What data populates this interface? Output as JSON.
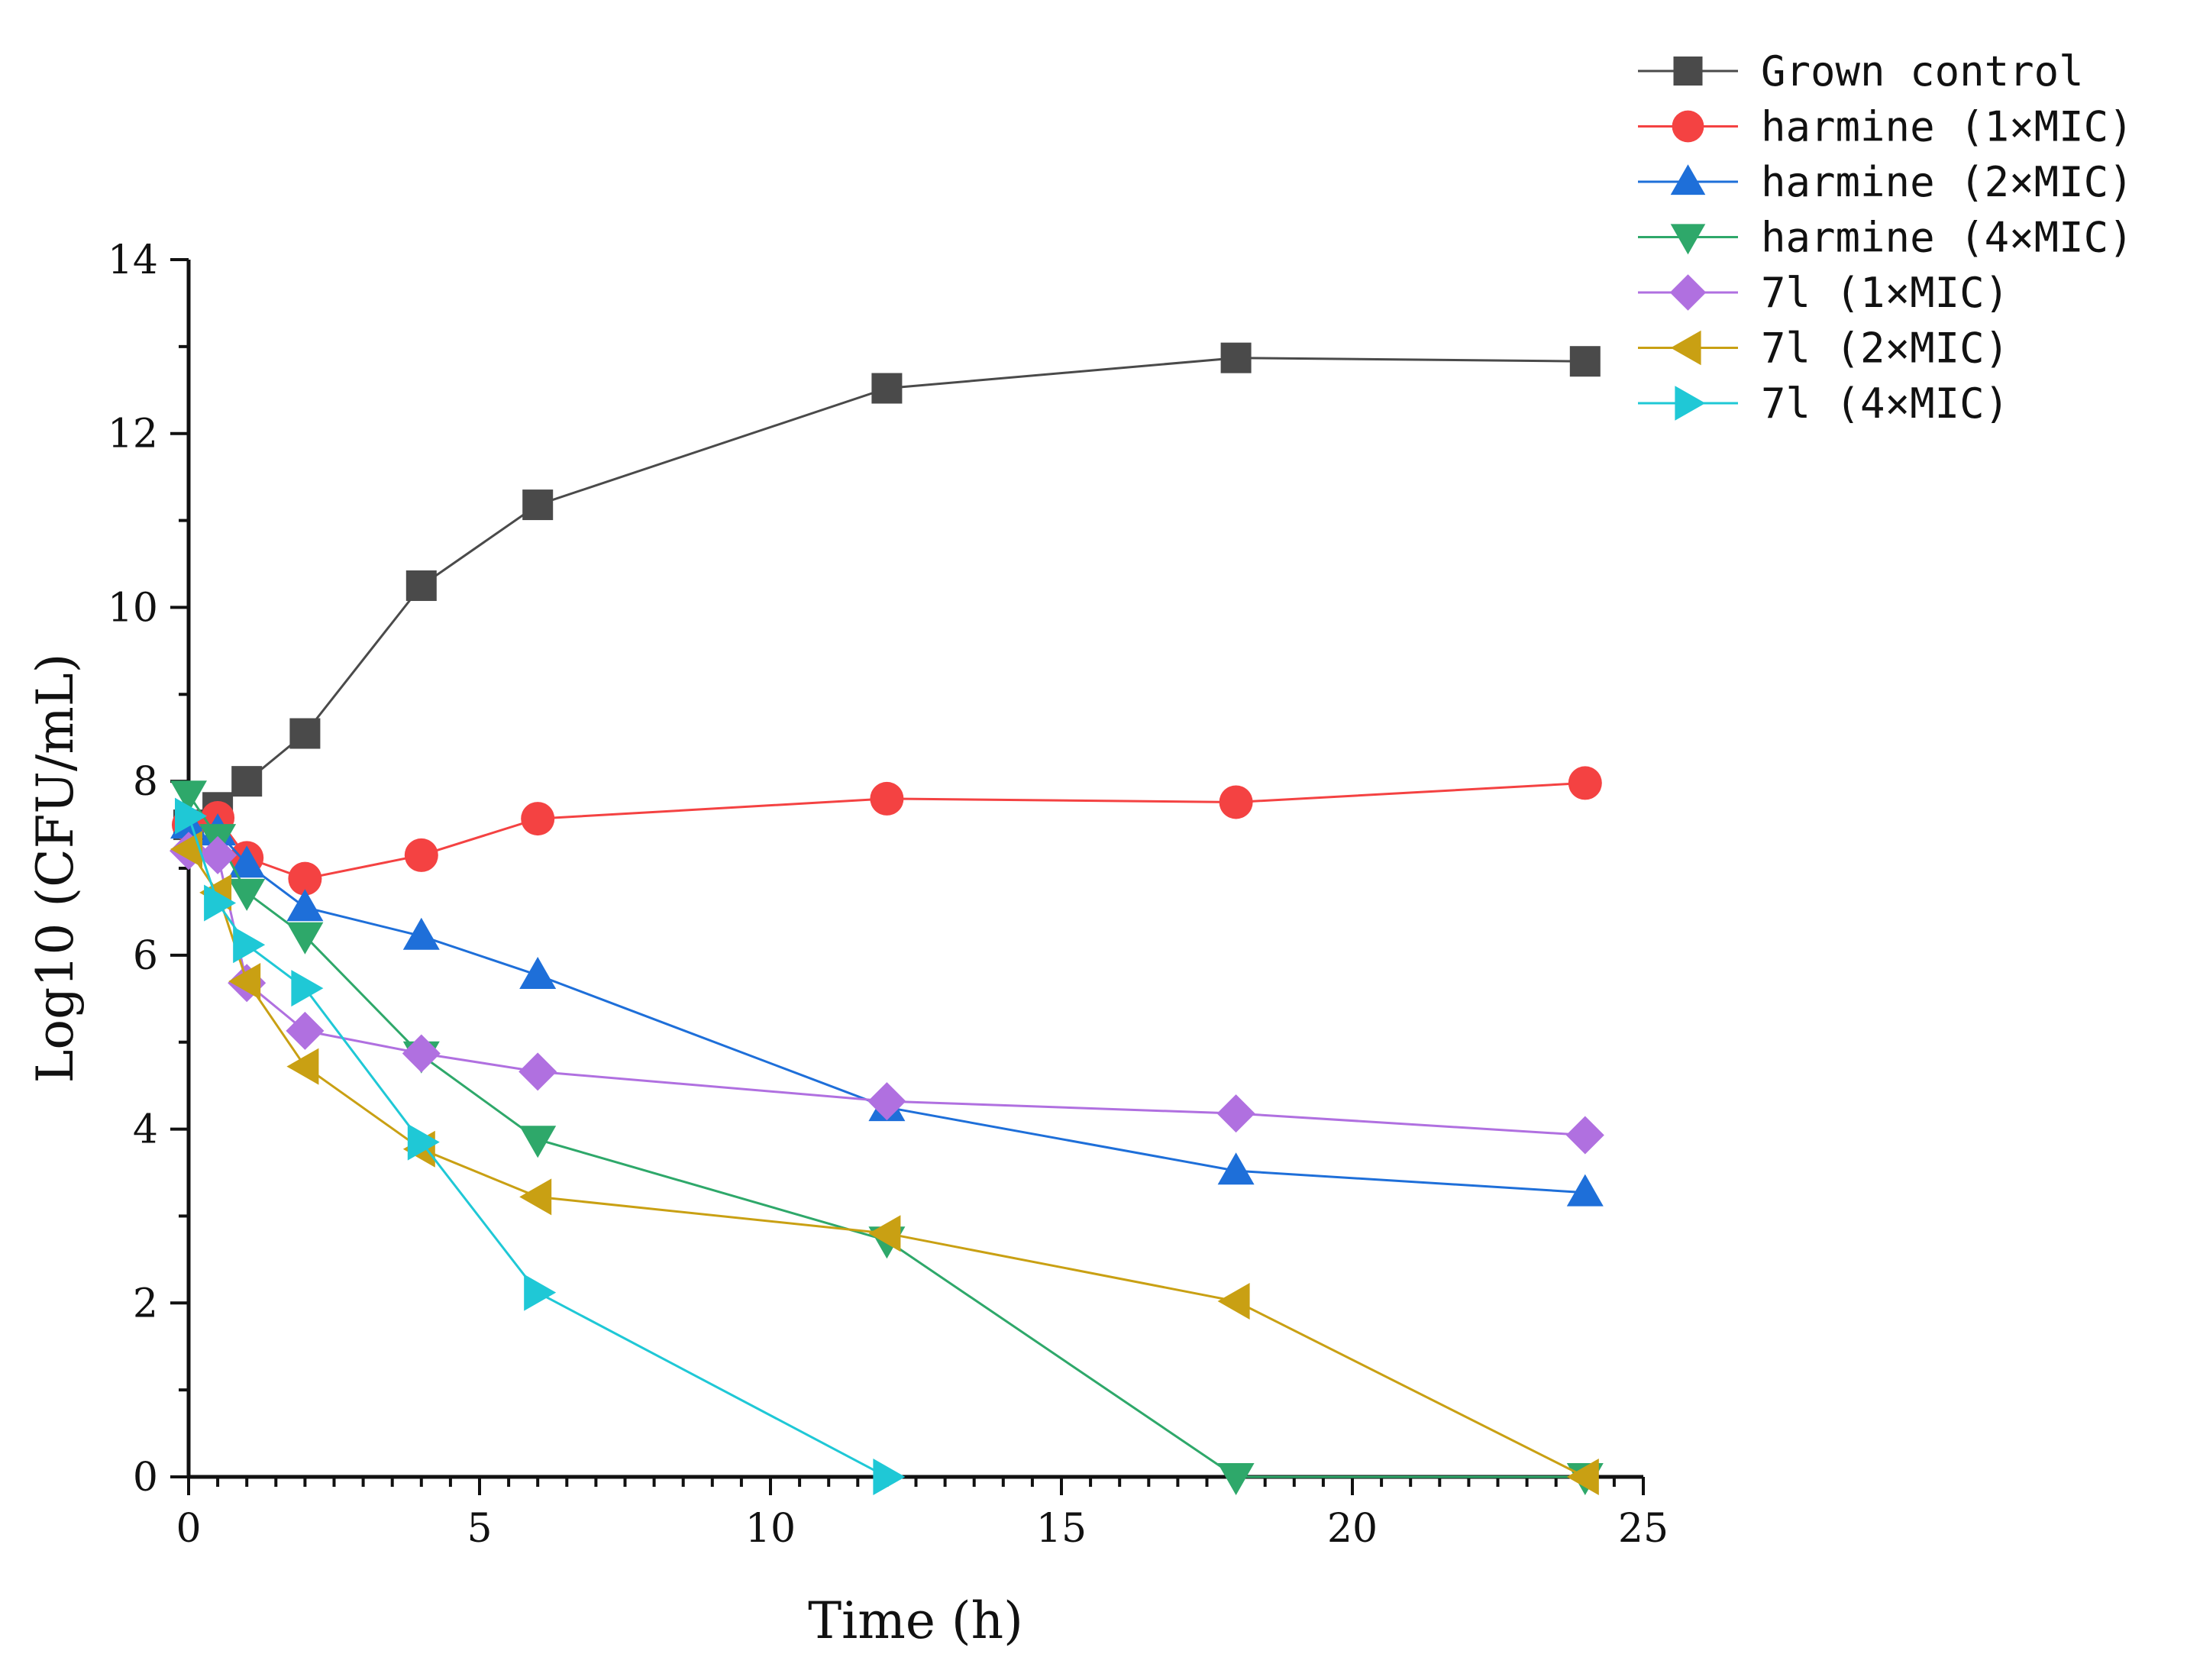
{
  "chart_data": {
    "type": "line",
    "title": "",
    "xlabel": "Time (h)",
    "ylabel": "Log10 (CFU/mL)",
    "xlim": [
      0,
      25
    ],
    "ylim": [
      0,
      14
    ],
    "xticks": [
      "0",
      "5",
      "10",
      "15",
      "20",
      "25"
    ],
    "yticks": [
      "0",
      "2",
      "4",
      "6",
      "8",
      "10",
      "12",
      "14"
    ],
    "legend_position": "top-right, outside plot",
    "grid": false,
    "series": [
      {
        "name": "Grown control",
        "color": "#4a4a4a",
        "marker": "square",
        "x": [
          0,
          0.5,
          1,
          2,
          4,
          6,
          12,
          18,
          24
        ],
        "y": [
          7.5,
          7.7,
          8.0,
          8.55,
          10.25,
          11.18,
          12.52,
          12.87,
          12.83
        ]
      },
      {
        "name": "harmine (1×MIC)",
        "color": "#f44242",
        "marker": "circle",
        "x": [
          0,
          0.5,
          1,
          2,
          4,
          6,
          12,
          18,
          24
        ],
        "y": [
          7.5,
          7.58,
          7.12,
          6.88,
          7.15,
          7.57,
          7.8,
          7.76,
          7.98
        ]
      },
      {
        "name": "harmine (2×MIC)",
        "color": "#1e6fd9",
        "marker": "triangle-up",
        "x": [
          0,
          0.5,
          1,
          2,
          4,
          6,
          12,
          18,
          24
        ],
        "y": [
          7.5,
          7.42,
          7.05,
          6.55,
          6.22,
          5.77,
          4.25,
          3.52,
          3.27
        ]
      },
      {
        "name": "harmine (4×MIC)",
        "color": "#2ea86a",
        "marker": "triangle-down",
        "x": [
          0,
          0.5,
          1,
          2,
          4,
          6,
          12,
          18,
          24
        ],
        "y": [
          7.85,
          7.35,
          6.72,
          6.22,
          4.85,
          3.88,
          2.72,
          0,
          0
        ]
      },
      {
        "name": "7l (1×MIC)",
        "color": "#b070e0",
        "marker": "diamond",
        "x": [
          0,
          0.5,
          1,
          2,
          4,
          6,
          12,
          18,
          24
        ],
        "y": [
          7.2,
          7.15,
          5.68,
          5.13,
          4.87,
          4.66,
          4.32,
          4.18,
          3.93
        ]
      },
      {
        "name": "7l (2×MIC)",
        "color": "#c9a013",
        "marker": "triangle-left",
        "x": [
          0,
          0.5,
          1,
          2,
          4,
          6,
          12,
          18,
          24
        ],
        "y": [
          7.22,
          6.72,
          5.7,
          4.72,
          3.77,
          3.22,
          2.8,
          2.02,
          0
        ]
      },
      {
        "name": "7l (4×MIC)",
        "color": "#1fc8d6",
        "marker": "triangle-right",
        "x": [
          0,
          0.5,
          1,
          2,
          4,
          6,
          12
        ],
        "y": [
          7.6,
          6.6,
          6.12,
          5.62,
          3.85,
          2.12,
          0
        ]
      }
    ]
  }
}
